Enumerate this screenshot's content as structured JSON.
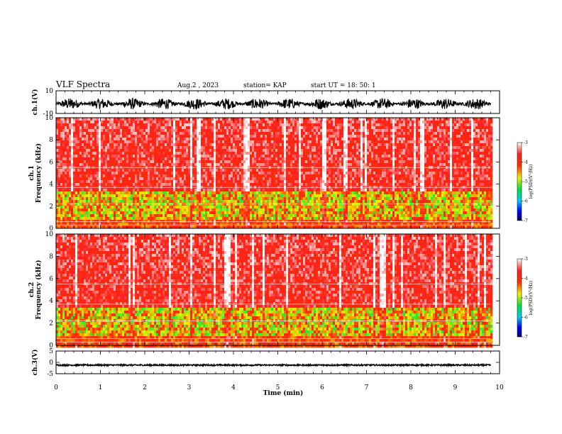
{
  "header": {
    "title": "VLF Spectra",
    "date": "Aug.2 , 2023",
    "station": "station= KAP",
    "start": "start UT = 18: 50: 1"
  },
  "chart_data": [
    {
      "type": "line",
      "name": "ch1-waveform",
      "ylabel": "ch.1(V)",
      "ylim": [
        -10,
        10
      ],
      "yticks": [
        "10",
        "-10"
      ],
      "xlim": [
        0,
        10
      ],
      "trace": {
        "center": -1.5,
        "amplitude": 5,
        "end_x": 9.8
      },
      "color": "#000000"
    },
    {
      "type": "heatmap",
      "name": "ch1-spectrogram",
      "ylabel": "ch.1\nFrequency (kHz)",
      "ylim": [
        0,
        10
      ],
      "yticks": [
        "0",
        "2",
        "4",
        "6",
        "8",
        "10"
      ],
      "xlim": [
        0,
        9.8
      ],
      "colorbar": {
        "label": "log(PSD)(V²/Hz)",
        "range": [
          -7,
          -3
        ],
        "ticks": [
          "-3",
          "-4",
          "-5",
          "-6",
          "-7"
        ]
      },
      "green_band_khz": [
        1,
        3.5
      ]
    },
    {
      "type": "heatmap",
      "name": "ch2-spectrogram",
      "ylabel": "ch.2\nFrequency (kHz)",
      "ylim": [
        0,
        10
      ],
      "yticks": [
        "0",
        "2",
        "4",
        "6",
        "8",
        "10"
      ],
      "xlim": [
        0,
        9.8
      ],
      "colorbar": {
        "label": "log(PSD)(V²/Hz)",
        "range": [
          -7,
          -3
        ],
        "ticks": [
          "-3",
          "-4",
          "-5",
          "-6",
          "-7"
        ]
      },
      "green_band_khz": [
        1,
        3.5
      ]
    },
    {
      "type": "line",
      "name": "ch3-waveform",
      "ylabel": "ch.3(V)",
      "ylim": [
        -5,
        5
      ],
      "yticks": [
        "5",
        "0",
        "-5"
      ],
      "xlim": [
        0,
        10
      ],
      "trace": {
        "center": -1.2,
        "amplitude": 0.3,
        "end_x": 9.8
      },
      "color": "#000000"
    }
  ],
  "xaxis": {
    "label": "Time (min)",
    "ticks": [
      "0",
      "1",
      "2",
      "3",
      "4",
      "5",
      "6",
      "7",
      "8",
      "9",
      "10"
    ],
    "range": [
      0,
      10
    ]
  }
}
